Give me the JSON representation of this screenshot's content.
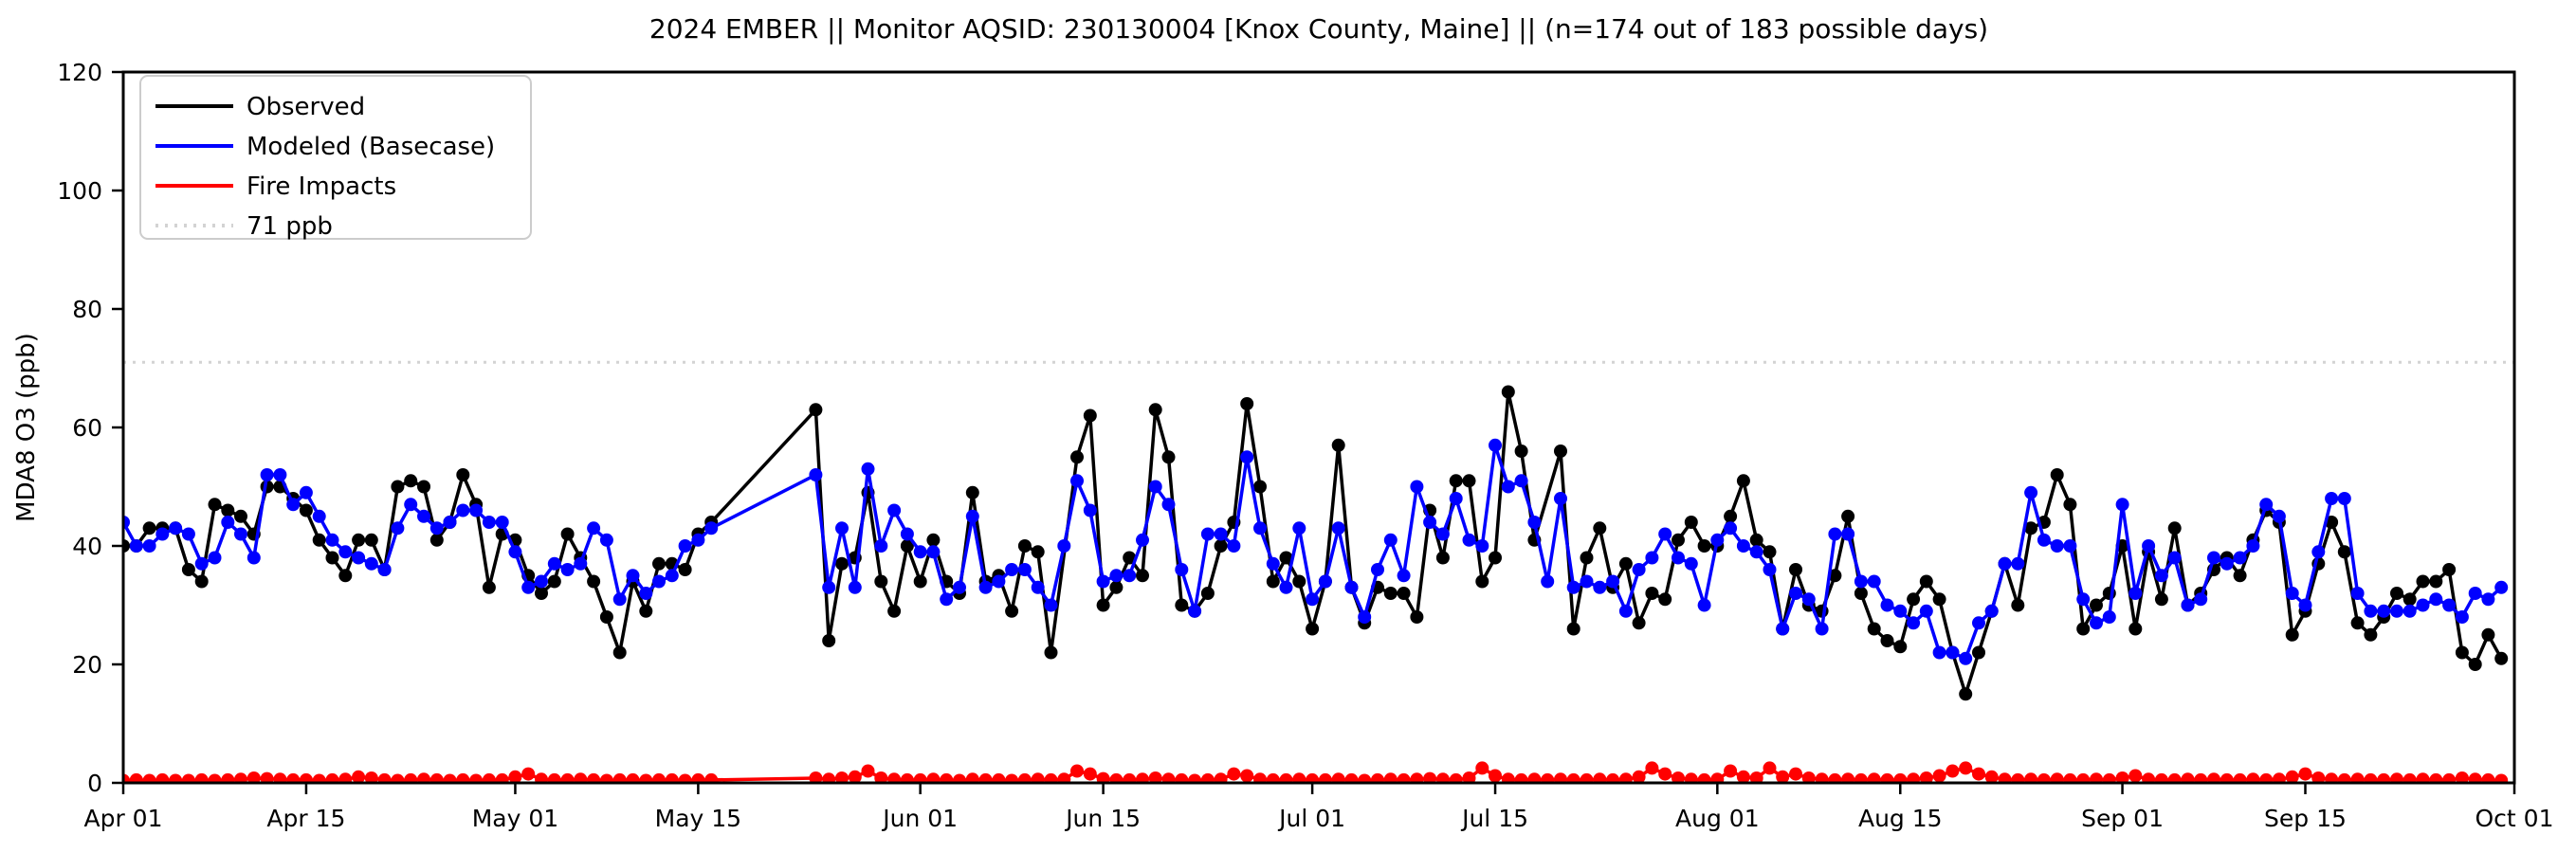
{
  "chart_data": {
    "type": "line",
    "title": "2024 EMBER || Monitor AQSID: 230130004 [Knox County, Maine] || (n=174 out of 183 possible days)",
    "ylabel": "MDA8 O3 (ppb)",
    "xlabel": "",
    "ylim": [
      0,
      120
    ],
    "yticks": [
      0,
      20,
      40,
      60,
      80,
      100,
      120
    ],
    "n_days": 183,
    "x_range_note": "daily values, Apr 01 through Sep 30 2024; x axis ends at Oct 01",
    "grid": false,
    "legend_position": "upper left",
    "xticks": [
      {
        "label": "Apr 01",
        "day": 0
      },
      {
        "label": "Apr 15",
        "day": 14
      },
      {
        "label": "May 01",
        "day": 30
      },
      {
        "label": "May 15",
        "day": 44
      },
      {
        "label": "Jun 01",
        "day": 61
      },
      {
        "label": "Jun 15",
        "day": 75
      },
      {
        "label": "Jul 01",
        "day": 91
      },
      {
        "label": "Jul 15",
        "day": 105
      },
      {
        "label": "Aug 01",
        "day": 122
      },
      {
        "label": "Aug 15",
        "day": 136
      },
      {
        "label": "Sep 01",
        "day": 153
      },
      {
        "label": "Sep 15",
        "day": 167
      },
      {
        "label": "Oct 01",
        "day": 183
      }
    ],
    "threshold": {
      "label": "71 ppb",
      "value": 71,
      "color": "#d3d3d3",
      "style": "dotted"
    },
    "series": [
      {
        "name": "Observed",
        "color": "#000000",
        "values": [
          40,
          40,
          43,
          43,
          43,
          36,
          34,
          47,
          46,
          45,
          42,
          50,
          50,
          48,
          46,
          41,
          38,
          35,
          41,
          41,
          36,
          50,
          51,
          50,
          41,
          44,
          52,
          47,
          33,
          42,
          41,
          35,
          32,
          34,
          42,
          38,
          34,
          28,
          22,
          34,
          29,
          37,
          37,
          36,
          42,
          44,
          null,
          null,
          null,
          null,
          null,
          null,
          null,
          63,
          24,
          37,
          38,
          49,
          34,
          29,
          40,
          34,
          41,
          34,
          32,
          49,
          34,
          35,
          29,
          40,
          39,
          22,
          null,
          55,
          62,
          30,
          33,
          38,
          35,
          63,
          55,
          30,
          29,
          32,
          40,
          44,
          64,
          50,
          34,
          38,
          34,
          26,
          34,
          57,
          33,
          27,
          33,
          32,
          32,
          28,
          46,
          38,
          51,
          51,
          34,
          38,
          66,
          56,
          41,
          null,
          56,
          26,
          38,
          43,
          33,
          37,
          27,
          32,
          31,
          41,
          44,
          40,
          40,
          45,
          51,
          41,
          39,
          26,
          36,
          30,
          29,
          35,
          45,
          32,
          26,
          24,
          23,
          31,
          34,
          31,
          22,
          15,
          22,
          29,
          37,
          30,
          43,
          44,
          52,
          47,
          26,
          30,
          32,
          40,
          26,
          39,
          31,
          43,
          30,
          32,
          36,
          38,
          35,
          41,
          46,
          44,
          25,
          29,
          37,
          44,
          39,
          27,
          25,
          28,
          32,
          31,
          34,
          34,
          36,
          22,
          20,
          25,
          21
        ]
      },
      {
        "name": "Modeled (Basecase)",
        "color": "#0000ff",
        "values": [
          44,
          40,
          40,
          42,
          43,
          42,
          37,
          38,
          44,
          42,
          38,
          52,
          52,
          47,
          49,
          45,
          41,
          39,
          38,
          37,
          36,
          43,
          47,
          45,
          43,
          44,
          46,
          46,
          44,
          44,
          39,
          33,
          34,
          37,
          36,
          37,
          43,
          41,
          31,
          35,
          32,
          34,
          35,
          40,
          41,
          43,
          null,
          null,
          null,
          null,
          null,
          null,
          null,
          52,
          33,
          43,
          33,
          53,
          40,
          46,
          42,
          39,
          39,
          31,
          33,
          45,
          33,
          34,
          36,
          36,
          33,
          30,
          40,
          51,
          46,
          34,
          35,
          35,
          41,
          50,
          47,
          36,
          29,
          42,
          42,
          40,
          55,
          43,
          37,
          33,
          43,
          31,
          34,
          43,
          33,
          28,
          36,
          41,
          35,
          50,
          44,
          42,
          48,
          41,
          40,
          57,
          50,
          51,
          44,
          34,
          48,
          33,
          34,
          33,
          34,
          29,
          36,
          38,
          42,
          38,
          37,
          30,
          41,
          43,
          40,
          39,
          36,
          26,
          32,
          31,
          26,
          42,
          42,
          34,
          34,
          30,
          29,
          27,
          29,
          22,
          22,
          21,
          27,
          29,
          37,
          37,
          49,
          41,
          40,
          40,
          31,
          27,
          28,
          47,
          32,
          40,
          35,
          38,
          30,
          31,
          38,
          37,
          38,
          40,
          47,
          45,
          32,
          30,
          39,
          48,
          48,
          32,
          29,
          29,
          29,
          29,
          30,
          31,
          30,
          28,
          32,
          31,
          33
        ]
      },
      {
        "name": "Fire Impacts",
        "color": "#ff0000",
        "values": [
          0.4,
          0.5,
          0.4,
          0.5,
          0.4,
          0.4,
          0.5,
          0.4,
          0.5,
          0.6,
          0.8,
          0.7,
          0.6,
          0.5,
          0.5,
          0.4,
          0.5,
          0.6,
          1.0,
          0.8,
          0.5,
          0.4,
          0.5,
          0.6,
          0.5,
          0.4,
          0.5,
          0.4,
          0.5,
          0.5,
          1.0,
          1.5,
          0.6,
          0.5,
          0.5,
          0.6,
          0.5,
          0.4,
          0.5,
          0.5,
          0.4,
          0.5,
          0.5,
          0.4,
          0.5,
          0.5,
          null,
          null,
          null,
          null,
          null,
          null,
          null,
          0.8,
          0.6,
          0.8,
          1.0,
          2.0,
          0.8,
          0.6,
          0.5,
          0.5,
          0.6,
          0.5,
          0.4,
          0.6,
          0.5,
          0.5,
          0.4,
          0.5,
          0.6,
          0.5,
          0.6,
          2.0,
          1.5,
          0.7,
          0.5,
          0.5,
          0.6,
          0.8,
          0.6,
          0.5,
          0.4,
          0.5,
          0.6,
          1.5,
          1.2,
          0.6,
          0.5,
          0.5,
          0.6,
          0.5,
          0.5,
          0.6,
          0.5,
          0.4,
          0.5,
          0.6,
          0.5,
          0.6,
          0.7,
          0.6,
          0.5,
          0.8,
          2.5,
          1.2,
          0.6,
          0.5,
          0.6,
          0.5,
          0.6,
          0.5,
          0.5,
          0.6,
          0.5,
          0.6,
          1.0,
          2.5,
          1.5,
          0.8,
          0.6,
          0.5,
          0.6,
          2.0,
          1.0,
          0.8,
          2.5,
          1.0,
          1.5,
          0.8,
          0.6,
          0.5,
          0.6,
          0.5,
          0.6,
          0.5,
          0.5,
          0.6,
          0.8,
          1.2,
          2.0,
          2.5,
          1.5,
          1.0,
          0.6,
          0.5,
          0.6,
          0.5,
          0.6,
          0.5,
          0.5,
          0.6,
          0.5,
          0.8,
          1.2,
          0.6,
          0.5,
          0.5,
          0.6,
          0.5,
          0.6,
          0.5,
          0.5,
          0.6,
          0.5,
          0.6,
          1.0,
          1.5,
          0.8,
          0.6,
          0.5,
          0.6,
          0.5,
          0.5,
          0.6,
          0.5,
          0.6,
          0.5,
          0.5,
          0.8,
          0.6,
          0.5,
          0.4
        ]
      }
    ]
  }
}
